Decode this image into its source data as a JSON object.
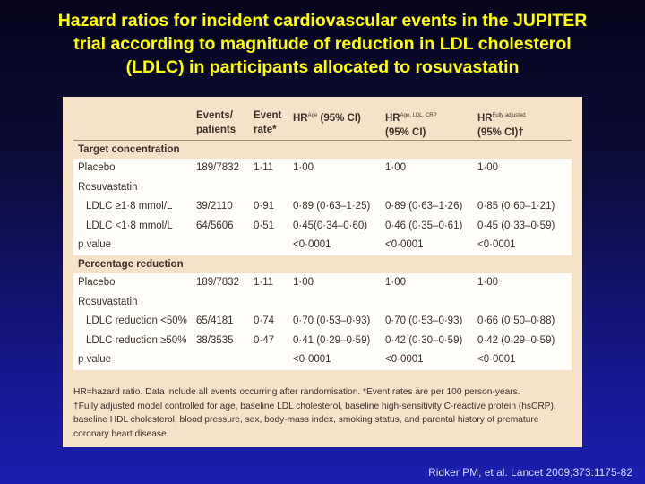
{
  "title": {
    "line1": "Hazard ratios for incident cardiovascular events in the JUPITER",
    "line2": "trial according to magnitude of reduction in LDL cholesterol",
    "line3": "(LDLC) in participants allocated to rosuvastatin"
  },
  "table": {
    "headers": {
      "events_line1": "Events/",
      "events_line2": "patients",
      "rate_line1": "Event",
      "rate_line2": "rate*",
      "hr_age_pre": "HR",
      "hr_age_sup": "Age",
      "hr_age_post": " (95% CI)",
      "hr_ldl_pre": "HR",
      "hr_ldl_sup": "Age, LDL, CRP",
      "hr_ldl_line2": "(95% CI)",
      "hr_full_pre": "HR",
      "hr_full_sup": "Fully adjusted",
      "hr_full_line2": "(95% CI)†"
    },
    "sections": [
      {
        "title": "Target concentration",
        "rows": [
          {
            "label": "Placebo",
            "events": "189/7832",
            "rate": "1·11",
            "hr_age": "1·00",
            "hr_ldl": "1·00",
            "hr_full": "1·00"
          },
          {
            "label": "Rosuvastatin",
            "events": "",
            "rate": "",
            "hr_age": "",
            "hr_ldl": "",
            "hr_full": ""
          },
          {
            "label": "LDLC ≥1·8 mmol/L",
            "events": "39/2110",
            "rate": "0·91",
            "hr_age": "0·89 (0·63–1·25)",
            "hr_ldl": "0·89 (0·63–1·26)",
            "hr_full": "0·85 (0·60–1·21)"
          },
          {
            "label": "LDLC <1·8 mmol/L",
            "events": "64/5606",
            "rate": "0·51",
            "hr_age": "0·45(0·34–0·60)",
            "hr_ldl": "0·46 (0·35–0·61)",
            "hr_full": "0·45 (0·33–0·59)"
          },
          {
            "label": "p value",
            "events": "",
            "rate": "",
            "hr_age": "<0·0001",
            "hr_ldl": "<0·0001",
            "hr_full": "<0·0001"
          }
        ]
      },
      {
        "title": "Percentage reduction",
        "rows": [
          {
            "label": "Placebo",
            "events": "189/7832",
            "rate": "1·11",
            "hr_age": "1·00",
            "hr_ldl": "1·00",
            "hr_full": "1·00"
          },
          {
            "label": "Rosuvastatin",
            "events": "",
            "rate": "",
            "hr_age": "",
            "hr_ldl": "",
            "hr_full": ""
          },
          {
            "label": "LDLC reduction <50%",
            "events": "65/4181",
            "rate": "0·74",
            "hr_age": "0·70 (0·53–0·93)",
            "hr_ldl": "0·70 (0·53–0·93)",
            "hr_full": "0·66 (0·50–0·88)"
          },
          {
            "label": "LDLC reduction ≥50%",
            "events": "38/3535",
            "rate": "0·47",
            "hr_age": "0·41 (0·29–0·59)",
            "hr_ldl": "0·42 (0·30–0·59)",
            "hr_full": "0·42 (0·29–0·59)"
          },
          {
            "label": "p value",
            "events": "",
            "rate": "",
            "hr_age": "<0·0001",
            "hr_ldl": "<0·0001",
            "hr_full": "<0·0001"
          }
        ]
      }
    ],
    "footnote": {
      "line1": "HR=hazard ratio. Data include all events occurring after randomisation. *Event rates are per 100 person-years.",
      "line2": "†Fully adjusted model controlled for age, baseline LDL cholesterol, baseline high-sensitivity C-reactive protein (hsCRP),",
      "line3": "baseline HDL cholesterol, blood pressure, sex, body-mass index, smoking status, and parental history of premature",
      "line4": "coronary heart disease."
    }
  },
  "citation": "Ridker PM, et al. Lancet 2009;373:1175-82"
}
